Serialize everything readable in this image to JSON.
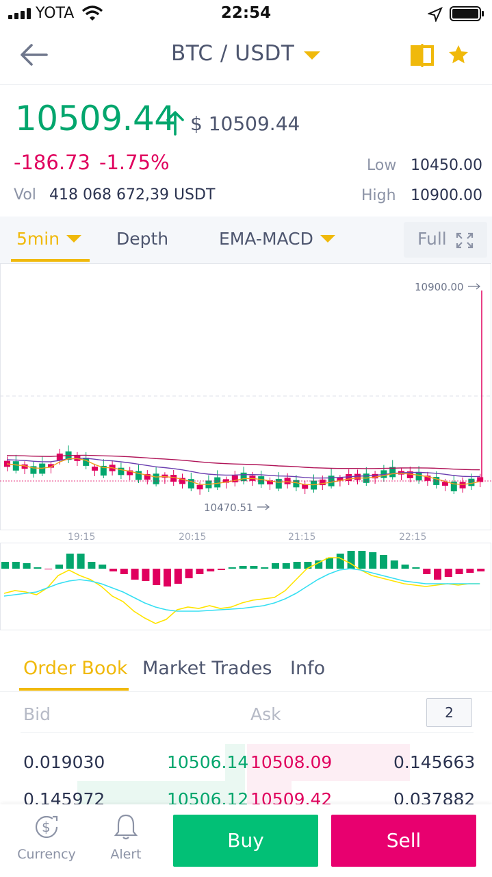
{
  "status_bar": {
    "carrier": "YOTA",
    "time": "22:54"
  },
  "header": {
    "pair": "BTC / USDT"
  },
  "ticker": {
    "last_price": "10509.44",
    "usd_price": "$ 10509.44",
    "change_abs": "-186.73",
    "change_pct": "-1.75%",
    "vol_label": "Vol",
    "vol_value": "418 068 672,39 USDT",
    "low_label": "Low",
    "low_value": "10450.00",
    "high_label": "High",
    "high_value": "10900.00"
  },
  "chart_tabs": {
    "interval": "5min",
    "depth": "Depth",
    "indicator": "EMA-MACD",
    "full": "Full"
  },
  "chart_data": {
    "type": "candlestick",
    "max_label": "10900.00",
    "min_label": "10470.51",
    "x_ticks": [
      "19:15",
      "20:15",
      "21:15",
      "22:15"
    ],
    "colors": {
      "up": "#03a66d",
      "down": "#e0005e",
      "macd_dif": "#ffe400",
      "macd_dea": "#36dff2"
    }
  },
  "order_book": {
    "tabs": [
      "Order Book",
      "Market Trades",
      "Info"
    ],
    "bid_label": "Bid",
    "ask_label": "Ask",
    "decimals": "2",
    "rows": [
      {
        "bid_qty": "0.019030",
        "bid_price": "10506.14",
        "ask_price": "10508.09",
        "ask_qty": "0.145663",
        "bid_depth": 0.04,
        "ask_depth": 0.33
      },
      {
        "bid_qty": "0.145972",
        "bid_price": "10506.12",
        "ask_price": "10509.42",
        "ask_qty": "0.037882",
        "bid_depth": 0.34,
        "ask_depth": 0.09
      }
    ]
  },
  "bottom_bar": {
    "currency": "Currency",
    "alert": "Alert",
    "buy": "Buy",
    "sell": "Sell"
  }
}
